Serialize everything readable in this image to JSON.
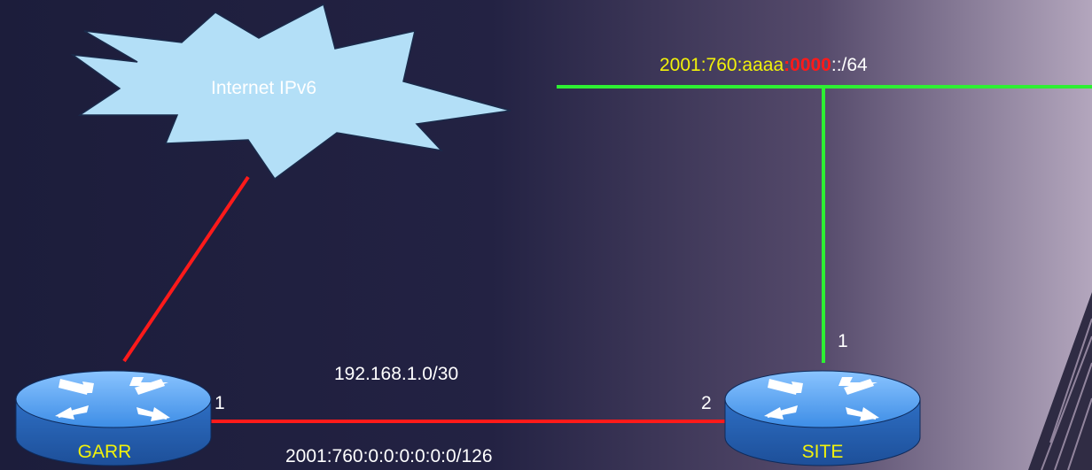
{
  "cloud": {
    "label": "Internet IPv6"
  },
  "lan": {
    "prefix_part1": "2001:760:aaaa",
    "prefix_part2": ":0000",
    "prefix_part3": "::/64"
  },
  "link": {
    "ipv4": "192.168.1.0/30",
    "ipv6": "2001:760:0:0:0:0:0:0/126"
  },
  "routers": {
    "garr": {
      "name": "GARR",
      "port": "1"
    },
    "site": {
      "name": "SITE",
      "port_link": "2",
      "port_lan": "1"
    }
  },
  "colors": {
    "background": "#1b1c3a",
    "cloud_fill": "#b3dff7",
    "router_fill": "#3d8de6",
    "wan_link": "#ff1a1a",
    "lan_link": "#2ef033",
    "highlight_text": "#f2f20a"
  }
}
